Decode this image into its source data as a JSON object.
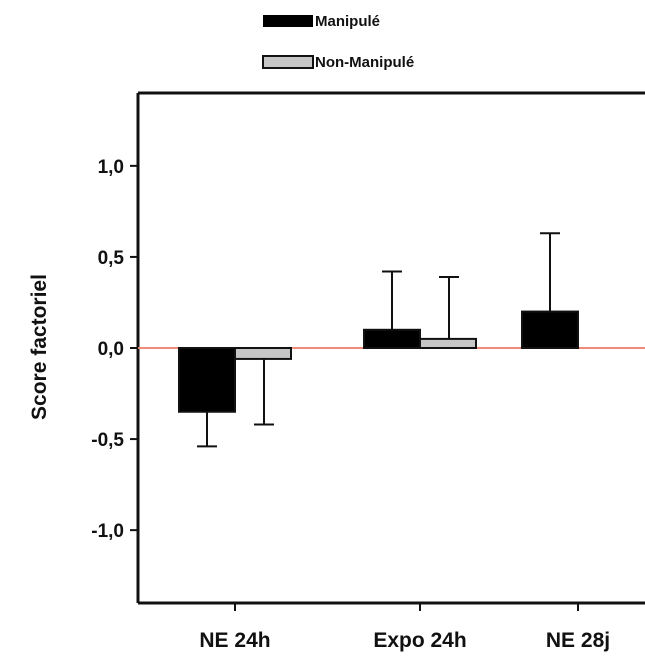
{
  "chart_data": {
    "type": "bar",
    "ylabel": "Score factoriel",
    "xlabel": "",
    "categories": [
      "NE 24h",
      "Expo 24h",
      "NE 28j"
    ],
    "ylim": [
      -1.4,
      1.4
    ],
    "yticks": [
      1.0,
      0.5,
      0.0,
      -0.5,
      -1.0
    ],
    "ytick_labels": [
      "1,0",
      "0,5",
      "0,0",
      "-0,5",
      "-1,0"
    ],
    "legend_position": "top-left",
    "grid": false,
    "zero_line_color": "#f08a78",
    "series": [
      {
        "name": "Manipulé",
        "color": "#000000",
        "values": [
          -0.35,
          0.1,
          0.2
        ],
        "error": [
          0.19,
          0.32,
          0.43
        ]
      },
      {
        "name": "Non-Manipulé",
        "color": "#c6c6c6",
        "values": [
          -0.06,
          0.05,
          null
        ],
        "error": [
          0.36,
          0.34,
          null
        ]
      }
    ]
  }
}
